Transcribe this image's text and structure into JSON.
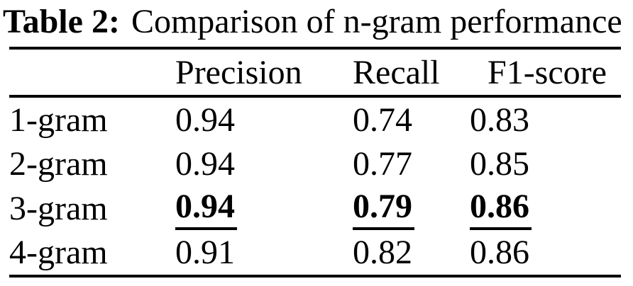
{
  "caption": {
    "label": "Table 2:",
    "text": "Comparison of n-gram performance"
  },
  "table": {
    "columns": [
      "",
      "Precision",
      "Recall",
      "F1-score"
    ],
    "rows": [
      {
        "label": "1-gram",
        "values": [
          "0.94",
          "0.74",
          "0.83"
        ],
        "highlight": false
      },
      {
        "label": "2-gram",
        "values": [
          "0.94",
          "0.77",
          "0.85"
        ],
        "highlight": false
      },
      {
        "label": "3-gram",
        "values": [
          "0.94",
          "0.79",
          "0.86"
        ],
        "highlight": true
      },
      {
        "label": "4-gram",
        "values": [
          "0.91",
          "0.82",
          "0.86"
        ],
        "highlight": false
      }
    ]
  },
  "chart_data": {
    "type": "table",
    "title": "Table 2: Comparison of n-gram performance",
    "categories": [
      "1-gram",
      "2-gram",
      "3-gram",
      "4-gram"
    ],
    "series": [
      {
        "name": "Precision",
        "values": [
          0.94,
          0.94,
          0.94,
          0.91
        ]
      },
      {
        "name": "Recall",
        "values": [
          0.74,
          0.77,
          0.79,
          0.82
        ]
      },
      {
        "name": "F1-score",
        "values": [
          0.83,
          0.85,
          0.86,
          0.86
        ]
      }
    ],
    "best_row": "3-gram"
  },
  "colors": {
    "text": "#000000",
    "background": "#ffffff",
    "rule": "#000000"
  }
}
